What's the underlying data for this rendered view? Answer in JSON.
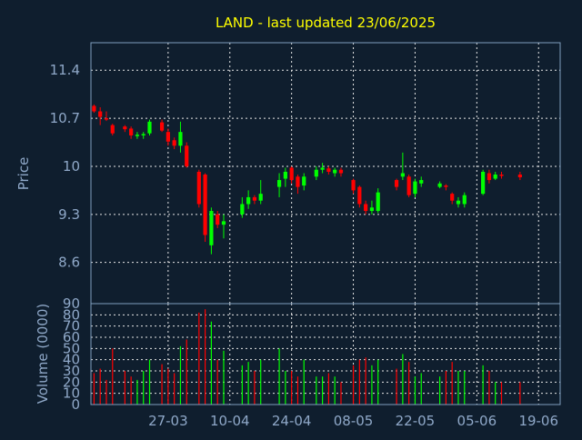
{
  "colors": {
    "background": "#0f1e2e",
    "frame": "#7f9fbf",
    "grid": "#e6e6e6",
    "title": "#ffff00",
    "axis_text": "#8fa8c8",
    "up": "#00ff00",
    "down": "#ff0000"
  },
  "chart_data": {
    "type": "candlestick",
    "title": "LAND - last updated 23/06/2025",
    "price_panel": {
      "ylabel": "Price",
      "ylim": [
        8.0,
        11.8
      ],
      "yticks": [
        "11.4",
        "10.7",
        "10",
        "9.3",
        "8.6"
      ],
      "ytick_values": [
        11.4,
        10.7,
        10.0,
        9.3,
        8.6
      ],
      "grid": true
    },
    "volume_panel": {
      "ylabel": "Volume (0000)",
      "ylim": [
        0,
        90
      ],
      "yticks": [
        "90",
        "80",
        "70",
        "60",
        "50",
        "40",
        "30",
        "20",
        "10",
        "0"
      ],
      "ytick_values": [
        90,
        80,
        70,
        60,
        50,
        40,
        30,
        20,
        10,
        0
      ],
      "grid": true
    },
    "xtick_labels": [
      "27-03",
      "10-04",
      "24-04",
      "08-05",
      "22-05",
      "05-06",
      "19-06"
    ],
    "xtick_indices": [
      12,
      22,
      32,
      42,
      52,
      62,
      72
    ],
    "n_slots": 76,
    "candles": [
      {
        "o": 10.88,
        "h": 10.9,
        "l": 10.78,
        "c": 10.8,
        "v": 28
      },
      {
        "o": 10.8,
        "h": 10.86,
        "l": 10.6,
        "c": 10.72,
        "v": 32
      },
      {
        "o": 10.7,
        "h": 10.8,
        "l": 10.66,
        "c": 10.68,
        "v": 22
      },
      {
        "o": 10.6,
        "h": 10.62,
        "l": 10.45,
        "c": 10.48,
        "v": 50
      },
      null,
      {
        "o": 10.58,
        "h": 10.6,
        "l": 10.5,
        "c": 10.54,
        "v": 30
      },
      {
        "o": 10.55,
        "h": 10.58,
        "l": 10.4,
        "c": 10.45,
        "v": 25
      },
      {
        "o": 10.45,
        "h": 10.5,
        "l": 10.4,
        "c": 10.46,
        "v": 22
      },
      {
        "o": 10.45,
        "h": 10.5,
        "l": 10.4,
        "c": 10.47,
        "v": 30
      },
      {
        "o": 10.48,
        "h": 10.68,
        "l": 10.45,
        "c": 10.65,
        "v": 40
      },
      null,
      {
        "o": 10.64,
        "h": 10.68,
        "l": 10.5,
        "c": 10.52,
        "v": 36
      },
      {
        "o": 10.5,
        "h": 10.55,
        "l": 10.3,
        "c": 10.36,
        "v": 32
      },
      {
        "o": 10.38,
        "h": 10.42,
        "l": 10.25,
        "c": 10.3,
        "v": 28
      },
      {
        "o": 10.3,
        "h": 10.65,
        "l": 10.2,
        "c": 10.5,
        "v": 52
      },
      {
        "o": 10.3,
        "h": 10.35,
        "l": 9.98,
        "c": 10.0,
        "v": 58
      },
      null,
      {
        "o": 9.92,
        "h": 9.95,
        "l": 9.4,
        "c": 9.45,
        "v": 82
      },
      {
        "o": 9.88,
        "h": 9.9,
        "l": 8.9,
        "c": 9.0,
        "v": 85
      },
      {
        "o": 8.85,
        "h": 9.4,
        "l": 8.72,
        "c": 9.35,
        "v": 74
      },
      {
        "o": 9.3,
        "h": 9.35,
        "l": 9.1,
        "c": 9.15,
        "v": 40
      },
      {
        "o": 9.15,
        "h": 9.3,
        "l": 8.95,
        "c": 9.2,
        "v": 48
      },
      null,
      null,
      {
        "o": 9.3,
        "h": 9.55,
        "l": 9.25,
        "c": 9.45,
        "v": 35
      },
      {
        "o": 9.45,
        "h": 9.65,
        "l": 9.38,
        "c": 9.55,
        "v": 38
      },
      {
        "o": 9.55,
        "h": 9.58,
        "l": 9.45,
        "c": 9.5,
        "v": 30
      },
      {
        "o": 9.5,
        "h": 9.8,
        "l": 9.45,
        "c": 9.6,
        "v": 40
      },
      null,
      null,
      {
        "o": 9.7,
        "h": 9.9,
        "l": 9.55,
        "c": 9.8,
        "v": 50
      },
      {
        "o": 9.82,
        "h": 9.98,
        "l": 9.7,
        "c": 9.92,
        "v": 30
      },
      {
        "o": 9.98,
        "h": 10.0,
        "l": 9.75,
        "c": 9.8,
        "v": 30
      },
      {
        "o": 9.85,
        "h": 9.88,
        "l": 9.6,
        "c": 9.7,
        "v": 25
      },
      {
        "o": 9.72,
        "h": 9.9,
        "l": 9.65,
        "c": 9.85,
        "v": 40
      },
      null,
      {
        "o": 9.85,
        "h": 10.0,
        "l": 9.8,
        "c": 9.95,
        "v": 25
      },
      {
        "o": 9.95,
        "h": 10.05,
        "l": 9.9,
        "c": 9.98,
        "v": 25
      },
      {
        "o": 9.97,
        "h": 10.0,
        "l": 9.88,
        "c": 9.92,
        "v": 28
      },
      {
        "o": 9.9,
        "h": 9.98,
        "l": 9.85,
        "c": 9.95,
        "v": 25
      },
      {
        "o": 9.95,
        "h": 9.98,
        "l": 9.85,
        "c": 9.9,
        "v": 20
      },
      null,
      {
        "o": 9.8,
        "h": 9.82,
        "l": 9.6,
        "c": 9.65,
        "v": 35
      },
      {
        "o": 9.7,
        "h": 9.72,
        "l": 9.4,
        "c": 9.45,
        "v": 40
      },
      {
        "o": 9.45,
        "h": 9.5,
        "l": 9.3,
        "c": 9.35,
        "v": 42
      },
      {
        "o": 9.35,
        "h": 9.5,
        "l": 9.3,
        "c": 9.4,
        "v": 35
      },
      {
        "o": 9.35,
        "h": 9.68,
        "l": 9.32,
        "c": 9.62,
        "v": 40
      },
      null,
      null,
      {
        "o": 9.8,
        "h": 9.82,
        "l": 9.65,
        "c": 9.7,
        "v": 32
      },
      {
        "o": 9.85,
        "h": 10.2,
        "l": 9.8,
        "c": 9.9,
        "v": 45
      },
      {
        "o": 9.85,
        "h": 9.88,
        "l": 9.55,
        "c": 9.58,
        "v": 38
      },
      {
        "o": 9.6,
        "h": 9.82,
        "l": 9.55,
        "c": 9.78,
        "v": 25
      },
      {
        "o": 9.75,
        "h": 9.85,
        "l": 9.7,
        "c": 9.8,
        "v": 28
      },
      null,
      null,
      {
        "o": 9.7,
        "h": 9.78,
        "l": 9.68,
        "c": 9.75,
        "v": 25
      },
      {
        "o": 9.72,
        "h": 9.74,
        "l": 9.65,
        "c": 9.7,
        "v": 30
      },
      {
        "o": 9.6,
        "h": 9.62,
        "l": 9.45,
        "c": 9.5,
        "v": 38
      },
      {
        "o": 9.45,
        "h": 9.55,
        "l": 9.4,
        "c": 9.5,
        "v": 30
      },
      {
        "o": 9.45,
        "h": 9.62,
        "l": 9.4,
        "c": 9.58,
        "v": 30
      },
      null,
      null,
      {
        "o": 9.6,
        "h": 9.95,
        "l": 9.58,
        "c": 9.92,
        "v": 35
      },
      {
        "o": 9.9,
        "h": 9.95,
        "l": 9.75,
        "c": 9.8,
        "v": 30
      },
      {
        "o": 9.82,
        "h": 9.92,
        "l": 9.8,
        "c": 9.88,
        "v": 20
      },
      {
        "o": 9.88,
        "h": 9.92,
        "l": 9.82,
        "c": 9.86,
        "v": 20
      },
      null,
      null,
      {
        "o": 9.88,
        "h": 9.92,
        "l": 9.8,
        "c": 9.84,
        "v": 20
      }
    ]
  }
}
